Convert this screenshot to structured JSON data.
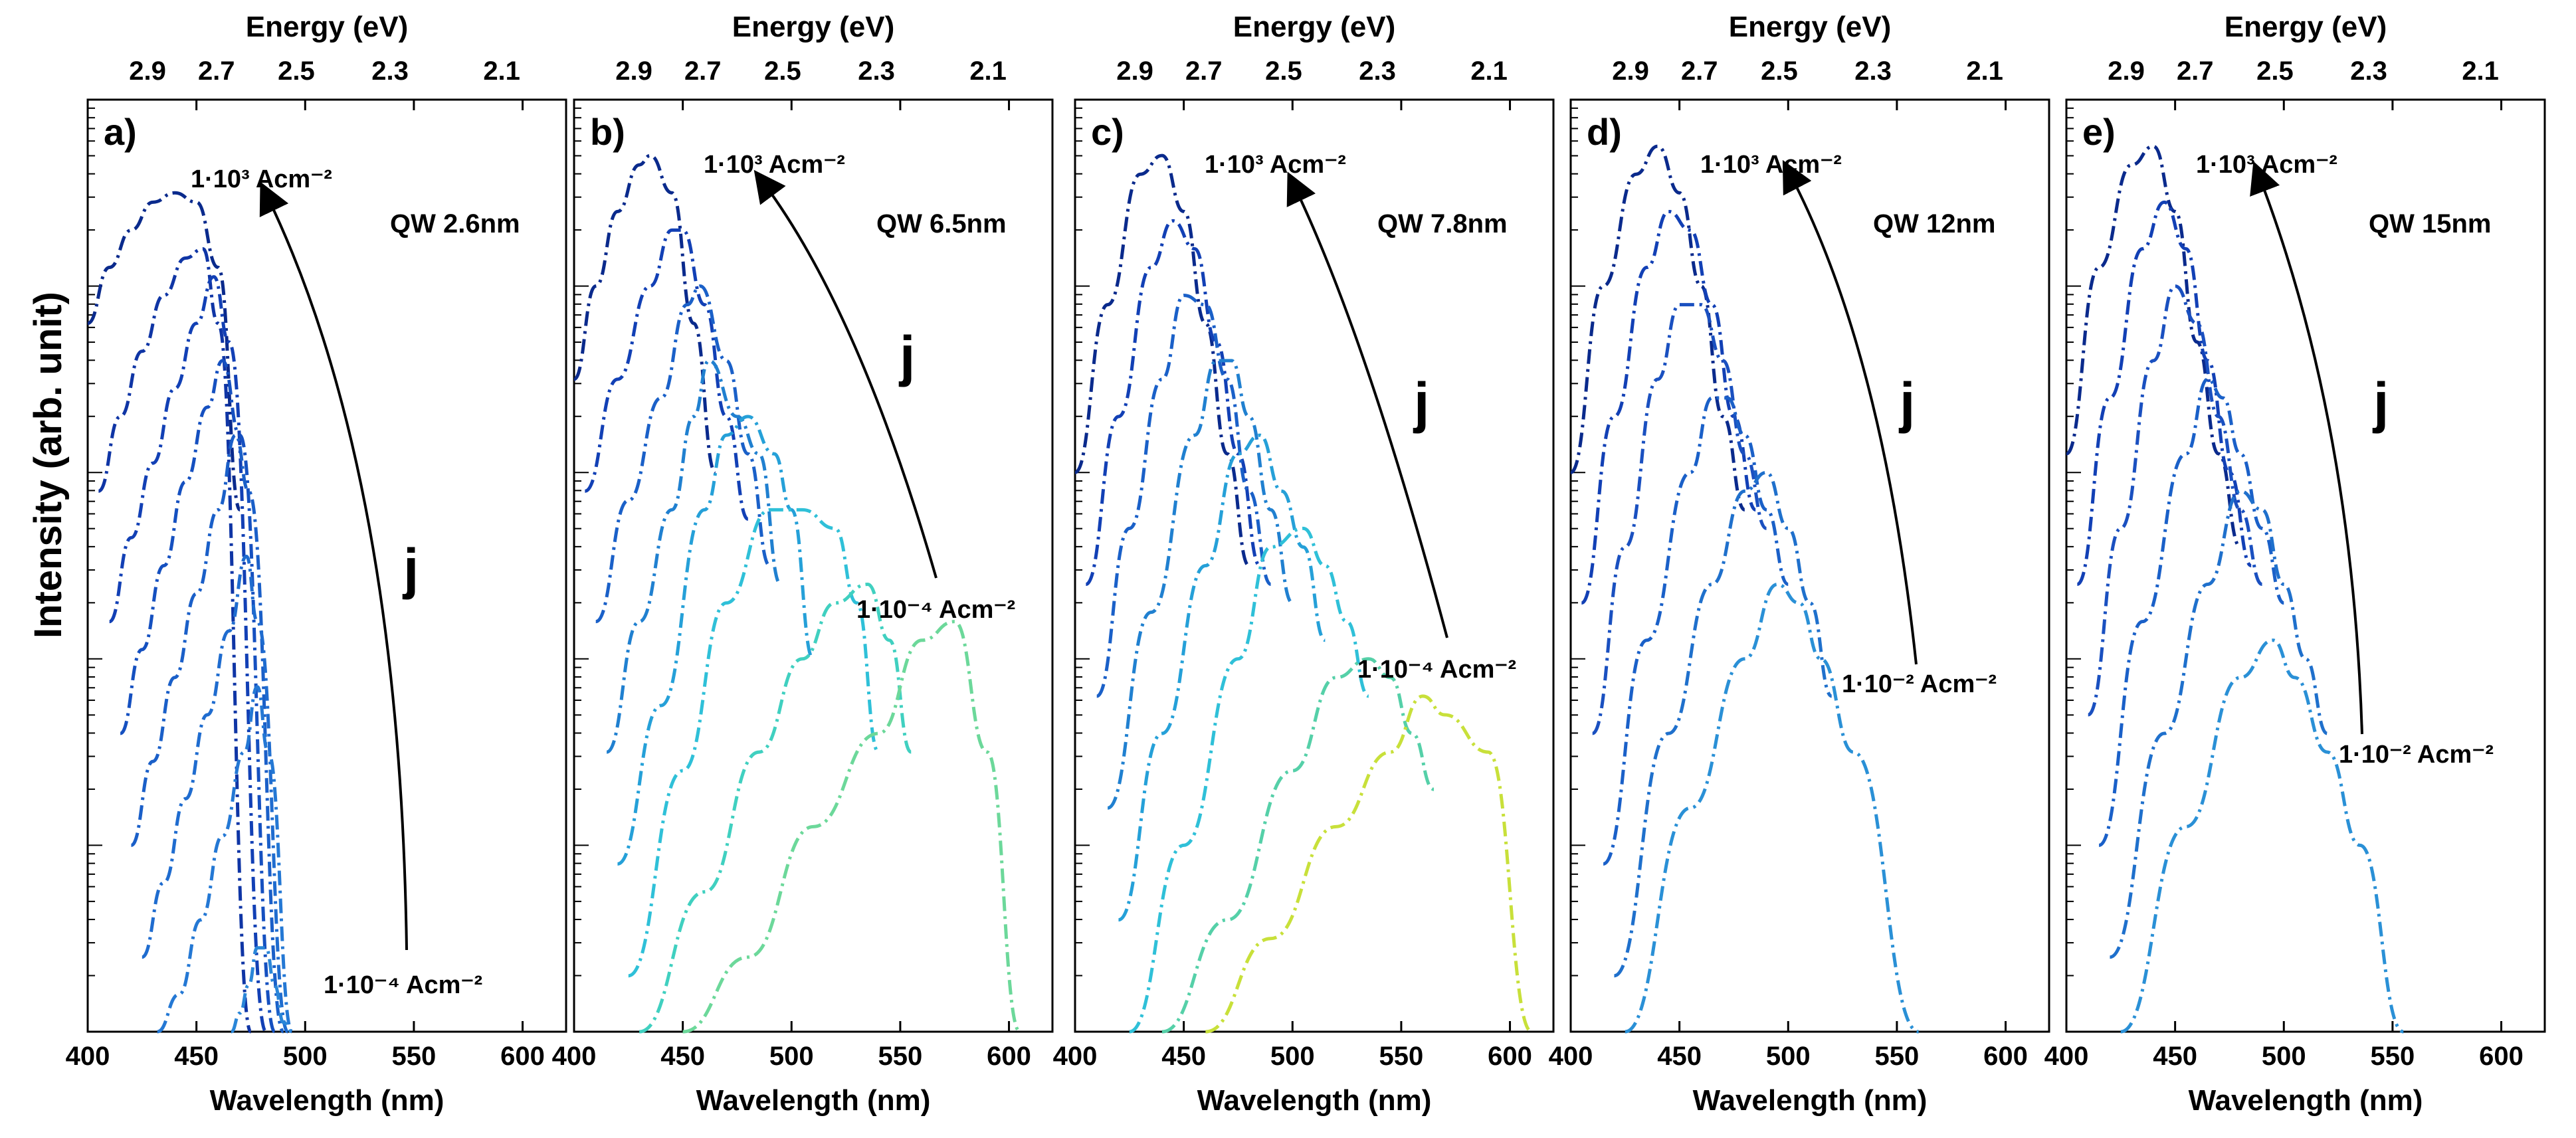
{
  "chart_data": {
    "type": "line",
    "ylabel": "Intensity (arb. unit)",
    "yscale": "log",
    "y_ticks": "unlabeled",
    "shared_xlabel": "Wavelength (nm)",
    "shared_x2label": "Energy (eV)",
    "xlim": [
      400,
      620
    ],
    "x_ticks": [
      400,
      450,
      500,
      550,
      600
    ],
    "x2_ticks": [
      2.9,
      2.7,
      2.5,
      2.3,
      2.1
    ],
    "ylim": [
      0,
      100
    ],
    "panels": [
      {
        "panel_label": "a)",
        "qw_label": "QW 2.6nm",
        "top_current": "1·10³ Acm⁻²",
        "bottom_current": "1·10⁻⁴ Acm⁻²",
        "arrow_label": "j",
        "series": [
          {
            "color": "#0a2a8c",
            "x": [
              400,
              410,
              420,
              430,
              440,
              450,
              460,
              470
            ],
            "y": [
              76,
              82,
              86,
              89,
              90,
              89,
              82,
              56
            ]
          },
          {
            "color": "#0f35a5",
            "x": [
              405,
              415,
              425,
              435,
              445,
              453,
              460,
              475
            ],
            "y": [
              58,
              66,
              73,
              79,
              83,
              84,
              76,
              0
            ]
          },
          {
            "color": "#1240b5",
            "x": [
              410,
              420,
              430,
              440,
              450,
              458,
              465,
              482
            ],
            "y": [
              44,
              53,
              61,
              69,
              76,
              81,
              74,
              0
            ]
          },
          {
            "color": "#1550c0",
            "x": [
              415,
              425,
              435,
              445,
              455,
              462,
              470,
              486
            ],
            "y": [
              32,
              41,
              50,
              59,
              67,
              72,
              64,
              0
            ]
          },
          {
            "color": "#1a5fc8",
            "x": [
              420,
              430,
              440,
              450,
              460,
              468,
              474,
              490
            ],
            "y": [
              20,
              29,
              38,
              47,
              56,
              64,
              58,
              0
            ]
          },
          {
            "color": "#1f6ccf",
            "x": [
              425,
              435,
              445,
              455,
              465,
              473,
              478,
              492
            ],
            "y": [
              8,
              16,
              25,
              34,
              43,
              51,
              44,
              0
            ]
          },
          {
            "color": "#2478d4",
            "x": [
              432,
              442,
              452,
              462,
              472,
              478,
              483,
              494
            ],
            "y": [
              0,
              4,
              12,
              21,
              30,
              37,
              30,
              0
            ]
          },
          {
            "color": "#2a86d8",
            "x": [
              466,
              470,
              474,
              478,
              482,
              486,
              490,
              494
            ],
            "y": [
              0,
              2,
              5,
              9,
              9,
              5,
              1,
              0
            ]
          }
        ]
      },
      {
        "panel_label": "b)",
        "qw_label": "QW 6.5nm",
        "top_current": "1·10³ Acm⁻²",
        "bottom_current": "1·10⁻⁴ Acm⁻²",
        "arrow_label": "j",
        "series": [
          {
            "color": "#0a2a8c",
            "x": [
              400,
              410,
              420,
              430,
              435,
              445,
              455,
              465
            ],
            "y": [
              70,
              80,
              88,
              93,
              94,
              90,
              76,
              60
            ]
          },
          {
            "color": "#1240b5",
            "x": [
              405,
              420,
              435,
              445,
              450,
              460,
              470,
              480
            ],
            "y": [
              58,
              70,
              80,
              86,
              86,
              78,
              66,
              55
            ]
          },
          {
            "color": "#1a60c8",
            "x": [
              410,
              425,
              440,
              452,
              458,
              470,
              480,
              490
            ],
            "y": [
              44,
              57,
              68,
              78,
              80,
              72,
              62,
              50
            ]
          },
          {
            "color": "#2080d0",
            "x": [
              415,
              430,
              445,
              455,
              462,
              475,
              485,
              495
            ],
            "y": [
              30,
              44,
              56,
              66,
              72,
              66,
              62,
              48
            ]
          },
          {
            "color": "#25a0d8",
            "x": [
              420,
              440,
              460,
              470,
              480,
              492,
              500,
              510
            ],
            "y": [
              18,
              35,
              56,
              64,
              66,
              62,
              56,
              40
            ]
          },
          {
            "color": "#2fc0d8",
            "x": [
              425,
              450,
              470,
              490,
              505,
              520,
              530,
              540
            ],
            "y": [
              6,
              28,
              46,
              56,
              56,
              54,
              46,
              30
            ]
          },
          {
            "color": "#40d0c0",
            "x": [
              430,
              460,
              485,
              505,
              520,
              535,
              545,
              555
            ],
            "y": [
              0,
              15,
              30,
              40,
              46,
              48,
              42,
              30
            ]
          },
          {
            "color": "#6cd89a",
            "x": [
              450,
              480,
              510,
              540,
              560,
              575,
              590,
              605
            ],
            "y": [
              0,
              8,
              22,
              32,
              42,
              44,
              30,
              0
            ]
          }
        ]
      },
      {
        "panel_label": "c)",
        "qw_label": "QW 7.8nm",
        "top_current": "1·10³ Acm⁻²",
        "bottom_current": "1·10⁻⁴ Acm⁻²",
        "arrow_label": "j",
        "series": [
          {
            "color": "#0a2a8c",
            "x": [
              400,
              415,
              430,
              440,
              450,
              460,
              470,
              480
            ],
            "y": [
              60,
              78,
              92,
              94,
              88,
              76,
              62,
              50
            ]
          },
          {
            "color": "#1240b5",
            "x": [
              405,
              420,
              435,
              445,
              455,
              465,
              475,
              485
            ],
            "y": [
              48,
              66,
              82,
              87,
              84,
              74,
              62,
              50
            ]
          },
          {
            "color": "#1a60c8",
            "x": [
              410,
              425,
              440,
              450,
              460,
              470,
              480,
              490
            ],
            "y": [
              36,
              54,
              70,
              79,
              78,
              70,
              58,
              48
            ]
          },
          {
            "color": "#2080d0",
            "x": [
              415,
              435,
              455,
              465,
              472,
              480,
              490,
              500
            ],
            "y": [
              24,
              45,
              64,
              72,
              72,
              66,
              56,
              46
            ]
          },
          {
            "color": "#25a0d8",
            "x": [
              420,
              440,
              460,
              475,
              485,
              495,
              505,
              515
            ],
            "y": [
              12,
              32,
              50,
              62,
              64,
              58,
              52,
              42
            ]
          },
          {
            "color": "#2fc0d8",
            "x": [
              425,
              450,
              475,
              490,
              505,
              515,
              525,
              535
            ],
            "y": [
              0,
              20,
              40,
              52,
              54,
              50,
              44,
              36
            ]
          },
          {
            "color": "#55d0a8",
            "x": [
              440,
              470,
              500,
              520,
              535,
              545,
              555,
              565
            ],
            "y": [
              0,
              12,
              28,
              38,
              40,
              38,
              32,
              26
            ]
          },
          {
            "color": "#c8e03a",
            "x": [
              460,
              490,
              520,
              545,
              560,
              570,
              590,
              610
            ],
            "y": [
              0,
              10,
              22,
              30,
              36,
              34,
              30,
              0
            ]
          }
        ]
      },
      {
        "panel_label": "d)",
        "qw_label": "QW 12nm",
        "top_current": "1·10³ Acm⁻²",
        "bottom_current": "1·10⁻² Acm⁻²",
        "arrow_label": "j",
        "series": [
          {
            "color": "#0a2a8c",
            "x": [
              400,
              415,
              430,
              440,
              450,
              460,
              470,
              480
            ],
            "y": [
              60,
              80,
              92,
              95,
              90,
              80,
              66,
              56
            ]
          },
          {
            "color": "#1240b5",
            "x": [
              405,
              420,
              435,
              445,
              455,
              465,
              475,
              485
            ],
            "y": [
              46,
              66,
              82,
              88,
              86,
              78,
              66,
              56
            ]
          },
          {
            "color": "#1a50c0",
            "x": [
              410,
              425,
              440,
              450,
              460,
              470,
              480,
              490
            ],
            "y": [
              32,
              52,
              70,
              78,
              78,
              72,
              62,
              54
            ]
          },
          {
            "color": "#1a60c8",
            "x": [
              415,
              435,
              455,
              465,
              472,
              480,
              490,
              500
            ],
            "y": [
              18,
              42,
              60,
              68,
              68,
              64,
              56,
              48
            ]
          },
          {
            "color": "#1f70cc",
            "x": [
              420,
              445,
              465,
              480,
              490,
              500,
              510,
              520
            ],
            "y": [
              6,
              32,
              48,
              58,
              60,
              54,
              46,
              36
            ]
          },
          {
            "color": "#2a90d6",
            "x": [
              425,
              455,
              480,
              495,
              505,
              515,
              530,
              560
            ],
            "y": [
              0,
              24,
              40,
              48,
              46,
              40,
              30,
              0
            ]
          }
        ]
      },
      {
        "panel_label": "e)",
        "qw_label": "QW 15nm",
        "top_current": "1·10³ Acm⁻²",
        "bottom_current": "1·10⁻² Acm⁻²",
        "arrow_label": "j",
        "series": [
          {
            "color": "#0a2a8c",
            "x": [
              400,
              415,
              430,
              440,
              450,
              460,
              470,
              480
            ],
            "y": [
              62,
              82,
              93,
              95,
              88,
              74,
              62,
              52
            ]
          },
          {
            "color": "#1240b5",
            "x": [
              405,
              420,
              435,
              445,
              455,
              465,
              475,
              485
            ],
            "y": [
              48,
              68,
              84,
              89,
              84,
              72,
              60,
              50
            ]
          },
          {
            "color": "#1a50c0",
            "x": [
              410,
              425,
              440,
              450,
              460,
              470,
              480,
              490
            ],
            "y": [
              34,
              54,
              72,
              80,
              76,
              66,
              56,
              48
            ]
          },
          {
            "color": "#1a60c8",
            "x": [
              415,
              435,
              455,
              465,
              472,
              480,
              490,
              500
            ],
            "y": [
              20,
              44,
              62,
              70,
              68,
              62,
              54,
              46
            ]
          },
          {
            "color": "#1f70cc",
            "x": [
              420,
              445,
              465,
              480,
              490,
              500,
              510,
              520
            ],
            "y": [
              8,
              32,
              48,
              58,
              56,
              48,
              40,
              32
            ]
          },
          {
            "color": "#2a90d6",
            "x": [
              425,
              455,
              480,
              495,
              505,
              520,
              535,
              555
            ],
            "y": [
              0,
              22,
              38,
              42,
              38,
              30,
              20,
              0
            ]
          }
        ]
      }
    ]
  }
}
